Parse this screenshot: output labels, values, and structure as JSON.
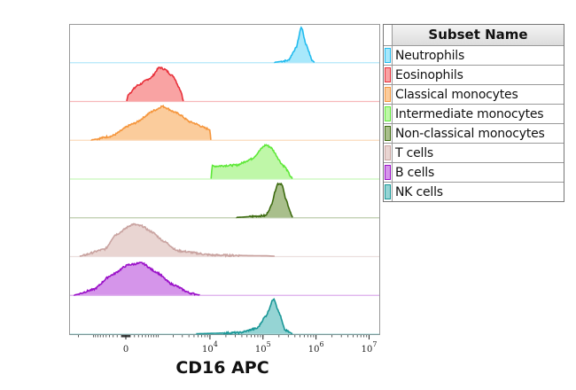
{
  "chart_data": {
    "type": "area",
    "subtype": "stacked histogram overlay (offset rows)",
    "xlabel": "CD16 APC",
    "x_scale": "biexponential",
    "xlim": [
      -2900,
      15000000
    ],
    "x_ticks": [
      {
        "value": 0,
        "label": "0",
        "sup": ""
      },
      {
        "value": 10000,
        "label": "10",
        "sup": "4"
      },
      {
        "value": 100000,
        "label": "10",
        "sup": "5"
      },
      {
        "value": 1000000,
        "label": "10",
        "sup": "6"
      },
      {
        "value": 10000000,
        "label": "10",
        "sup": "7"
      }
    ],
    "y_normalized": true,
    "grid": false,
    "legend": {
      "title": "Subset Name",
      "placement": "right"
    },
    "series": [
      {
        "name": "Neutrophils",
        "stroke": "#22bbee",
        "fill": "#a8e8fb",
        "points": [
          [
            166000,
            0
          ],
          [
            296000,
            0.05
          ],
          [
            420000,
            0.4
          ],
          [
            529000,
            1
          ],
          [
            650000,
            0.5
          ],
          [
            850000,
            0.05
          ],
          [
            936000,
            0
          ]
        ]
      },
      {
        "name": "Eosinophils",
        "stroke": "#e8303a",
        "fill": "#f9a3a3",
        "points": [
          [
            20,
            0
          ],
          [
            60,
            0.2
          ],
          [
            290,
            0.45
          ],
          [
            675,
            0.65
          ],
          [
            1060,
            0.95
          ],
          [
            1330,
            0.9
          ],
          [
            2000,
            0.7
          ],
          [
            2800,
            0.3
          ],
          [
            3150,
            0
          ]
        ]
      },
      {
        "name": "Classical monocytes",
        "stroke": "#f5963d",
        "fill": "#fbcc9c",
        "points": [
          [
            -1100,
            0
          ],
          [
            -365,
            0.1
          ],
          [
            163,
            0.45
          ],
          [
            890,
            0.85
          ],
          [
            1200,
            0.95
          ],
          [
            2400,
            0.75
          ],
          [
            4300,
            0.5
          ],
          [
            9600,
            0.3
          ],
          [
            10000,
            0.3
          ],
          [
            10400,
            0
          ]
        ]
      },
      {
        "name": "Intermediate monocytes",
        "stroke": "#5ee838",
        "fill": "#bff7a8",
        "points": [
          [
            10500,
            0
          ],
          [
            11000,
            0.35
          ],
          [
            32000,
            0.38
          ],
          [
            60000,
            0.55
          ],
          [
            113000,
            0.95
          ],
          [
            135000,
            0.9
          ],
          [
            250000,
            0.35
          ],
          [
            360000,
            0
          ]
        ]
      },
      {
        "name": "Non-classical monocytes",
        "stroke": "#3d6b10",
        "fill": "#a9bf8c",
        "points": [
          [
            32000,
            0
          ],
          [
            113000,
            0.05
          ],
          [
            135000,
            0.25
          ],
          [
            190000,
            0.95
          ],
          [
            226000,
            0.95
          ],
          [
            270000,
            0.5
          ],
          [
            360000,
            0
          ]
        ]
      },
      {
        "name": "T cells",
        "stroke": "#c9a3a0",
        "fill": "#e9d5d2",
        "points": [
          [
            -1900,
            0
          ],
          [
            -530,
            0.2
          ],
          [
            -250,
            0.6
          ],
          [
            163,
            0.9
          ],
          [
            390,
            0.85
          ],
          [
            675,
            0.7
          ],
          [
            1380,
            0.4
          ],
          [
            2400,
            0.15
          ],
          [
            11500,
            0.03
          ],
          [
            113000,
            0.01
          ],
          [
            166000,
            0
          ]
        ]
      },
      {
        "name": "B cells",
        "stroke": "#9a10c8",
        "fill": "#d595ea",
        "points": [
          [
            -2400,
            0
          ],
          [
            -1000,
            0.15
          ],
          [
            -365,
            0.55
          ],
          [
            60,
            0.85
          ],
          [
            390,
            0.9
          ],
          [
            890,
            0.65
          ],
          [
            1900,
            0.3
          ],
          [
            4300,
            0.05
          ],
          [
            6300,
            0
          ]
        ]
      },
      {
        "name": "NK cells",
        "stroke": "#1a9797",
        "fill": "#95d4d4",
        "points": [
          [
            5500,
            0
          ],
          [
            36000,
            0.03
          ],
          [
            77000,
            0.15
          ],
          [
            113000,
            0.5
          ],
          [
            160000,
            1
          ],
          [
            200000,
            0.6
          ],
          [
            260000,
            0.1
          ],
          [
            360000,
            0
          ]
        ]
      }
    ]
  }
}
